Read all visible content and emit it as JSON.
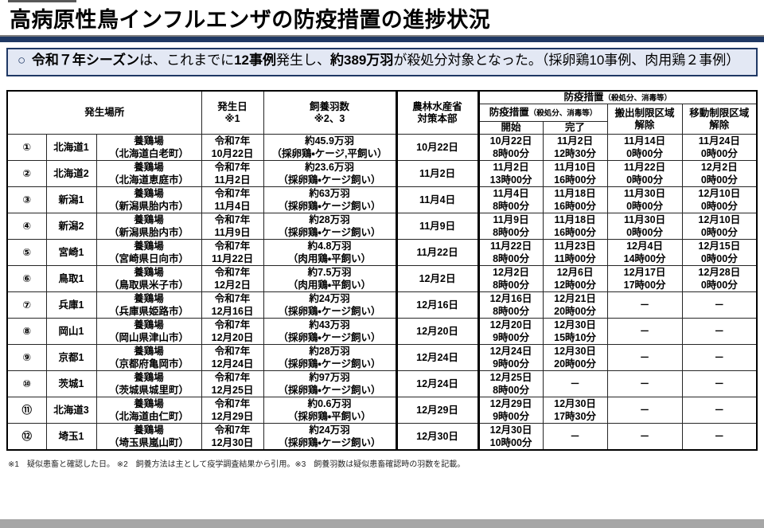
{
  "page": {
    "title": "高病原性鳥インフルエンザの防疫措置の進捗状況",
    "footnote": "※1　疑似患畜と確認した日。 ※2　飼養方法は主として疫学調査結果から引用。※3　飼養羽数は疑似患畜確認時の羽数を記載。",
    "colors": {
      "accent_navy": "#1F3864",
      "summary_bg": "#E3E8F4",
      "bottom_bar": "#a6a6a6"
    }
  },
  "summary": {
    "bullet": "○",
    "segments": [
      {
        "text": "令和７年シーズン",
        "bold": true
      },
      {
        "text": "は、これまでに",
        "bold": false
      },
      {
        "text": "12事例",
        "bold": true
      },
      {
        "text": "発生し、",
        "bold": false
      },
      {
        "text": "約389万羽",
        "bold": true
      },
      {
        "text": "が殺処分対象となった。（採卵鶏10事例、肉用鶏２事例）",
        "bold": false
      }
    ]
  },
  "table": {
    "headers": {
      "location": "発生場所",
      "onset_date": "発生日\n※1",
      "bird_count": "飼養羽数\n※2、3",
      "maff_hq": "農林水産省\n対策本部",
      "measures_group_main": "防疫措置",
      "measures_group_paren": "（殺処分、消毒等）",
      "measures_sub_main": "防疫措置",
      "measures_sub_paren": "（殺処分、消毒等）",
      "start": "開始",
      "complete": "完了",
      "shipment_lift": "搬出制限区域\n解除",
      "movement_lift": "移動制限区域\n解除"
    },
    "rows": [
      {
        "no": "①",
        "name": "北海道1",
        "place": "養鶏場\n（北海道白老町）",
        "onset": "令和7年\n10月22日",
        "birds": "約45.9万羽\n（採卵鶏・ケージ,平飼い）",
        "hq": "10月22日",
        "start": "10月22日\n8時00分",
        "complete": "11月2日\n12時30分",
        "ship": "11月14日\n0時00分",
        "move": "11月24日\n0時00分"
      },
      {
        "no": "②",
        "name": "北海道2",
        "place": "養鶏場\n（北海道恵庭市）",
        "onset": "令和7年\n11月2日",
        "birds": "約23.6万羽\n（採卵鶏・ケージ飼い）",
        "hq": "11月2日",
        "start": "11月2日\n13時00分",
        "complete": "11月10日\n16時00分",
        "ship": "11月22日\n0時00分",
        "move": "12月2日\n0時00分"
      },
      {
        "no": "③",
        "name": "新潟1",
        "place": "養鶏場\n（新潟県胎内市）",
        "onset": "令和7年\n11月4日",
        "birds": "約63万羽\n（採卵鶏・ケージ飼い）",
        "hq": "11月4日",
        "start": "11月4日\n8時00分",
        "complete": "11月18日\n16時00分",
        "ship": "11月30日\n0時00分",
        "move": "12月10日\n0時00分"
      },
      {
        "no": "④",
        "name": "新潟2",
        "place": "養鶏場\n（新潟県胎内市）",
        "onset": "令和7年\n11月9日",
        "birds": "約28万羽\n（採卵鶏・ケージ飼い）",
        "hq": "11月9日",
        "start": "11月9日\n8時00分",
        "complete": "11月18日\n16時00分",
        "ship": "11月30日\n0時00分",
        "move": "12月10日\n0時00分"
      },
      {
        "no": "⑤",
        "name": "宮崎1",
        "place": "養鶏場\n（宮崎県日向市）",
        "onset": "令和7年\n11月22日",
        "birds": "約4.8万羽\n（肉用鶏・平飼い）",
        "hq": "11月22日",
        "start": "11月22日\n8時00分",
        "complete": "11月23日\n11時00分",
        "ship": "12月4日\n14時00分",
        "move": "12月15日\n0時00分"
      },
      {
        "no": "⑥",
        "name": "鳥取1",
        "place": "養鶏場\n（鳥取県米子市）",
        "onset": "令和7年\n12月2日",
        "birds": "約7.5万羽\n（肉用鶏・平飼い）",
        "hq": "12月2日",
        "start": "12月2日\n8時00分",
        "complete": "12月6日\n12時00分",
        "ship": "12月17日\n17時00分",
        "move": "12月28日\n0時00分"
      },
      {
        "no": "⑦",
        "name": "兵庫1",
        "place": "養鶏場\n（兵庫県姫路市）",
        "onset": "令和7年\n12月16日",
        "birds": "約24万羽\n（採卵鶏・ケージ飼い）",
        "hq": "12月16日",
        "start": "12月16日\n8時00分",
        "complete": "12月21日\n20時00分",
        "ship": "－",
        "move": "－"
      },
      {
        "no": "⑧",
        "name": "岡山1",
        "place": "養鶏場\n（岡山県津山市）",
        "onset": "令和7年\n12月20日",
        "birds": "約43万羽\n（採卵鶏・ケージ飼い）",
        "hq": "12月20日",
        "start": "12月20日\n9時00分",
        "complete": "12月30日\n15時10分",
        "ship": "－",
        "move": "－"
      },
      {
        "no": "⑨",
        "name": "京都1",
        "place": "養鶏場\n（京都府亀岡市）",
        "onset": "令和7年\n12月24日",
        "birds": "約28万羽\n（採卵鶏・ケージ飼い）",
        "hq": "12月24日",
        "start": "12月24日\n9時00分",
        "complete": "12月30日\n20時00分",
        "ship": "－",
        "move": "－"
      },
      {
        "no": "⑩",
        "name": "茨城1",
        "place": "養鶏場\n（茨城県城里町）",
        "onset": "令和7年\n12月25日",
        "birds": "約97万羽\n（採卵鶏・ケージ飼い）",
        "hq": "12月24日",
        "start": "12月25日\n8時00分",
        "complete": "－",
        "ship": "－",
        "move": "－"
      },
      {
        "no": "⑪",
        "name": "北海道3",
        "place": "養鶏場\n（北海道由仁町）",
        "onset": "令和7年\n12月29日",
        "birds": "約0.6万羽\n（採卵鶏・平飼い）",
        "hq": "12月29日",
        "start": "12月29日\n9時00分",
        "complete": "12月30日\n17時30分",
        "ship": "－",
        "move": "－"
      },
      {
        "no": "⑫",
        "name": "埼玉1",
        "place": "養鶏場\n（埼玉県嵐山町）",
        "onset": "令和7年\n12月30日",
        "birds": "約24万羽\n（採卵鶏・ケージ飼い）",
        "hq": "12月30日",
        "start": "12月30日\n10時00分",
        "complete": "－",
        "ship": "－",
        "move": "－"
      }
    ]
  }
}
